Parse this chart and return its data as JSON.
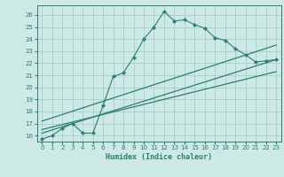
{
  "xlabel": "Humidex (Indice chaleur)",
  "bg_color": "#cce9e5",
  "grid_color": "#aaccca",
  "line_color": "#2e7d72",
  "xlim": [
    -0.5,
    23.5
  ],
  "ylim": [
    15.5,
    26.8
  ],
  "xticks": [
    0,
    1,
    2,
    3,
    4,
    5,
    6,
    7,
    8,
    9,
    10,
    11,
    12,
    13,
    14,
    15,
    16,
    17,
    18,
    19,
    20,
    21,
    22,
    23
  ],
  "yticks": [
    16,
    17,
    18,
    19,
    20,
    21,
    22,
    23,
    24,
    25,
    26
  ],
  "line1_x": [
    0,
    1,
    2,
    3,
    4,
    5,
    6,
    7,
    8,
    9,
    10,
    11,
    12,
    13,
    14,
    15,
    16,
    17,
    18,
    19,
    20,
    21,
    22,
    23
  ],
  "line1_y": [
    15.7,
    16.0,
    16.6,
    17.0,
    16.2,
    16.2,
    18.5,
    20.9,
    21.2,
    22.5,
    24.0,
    25.0,
    26.3,
    25.5,
    25.6,
    25.2,
    24.9,
    24.1,
    23.9,
    23.2,
    22.7,
    22.1,
    22.2,
    22.3
  ],
  "line2_x": [
    0,
    23
  ],
  "line2_y": [
    16.2,
    22.3
  ],
  "line3_x": [
    0,
    23
  ],
  "line3_y": [
    16.5,
    21.3
  ],
  "line4_x": [
    0,
    23
  ],
  "line4_y": [
    17.2,
    23.5
  ]
}
